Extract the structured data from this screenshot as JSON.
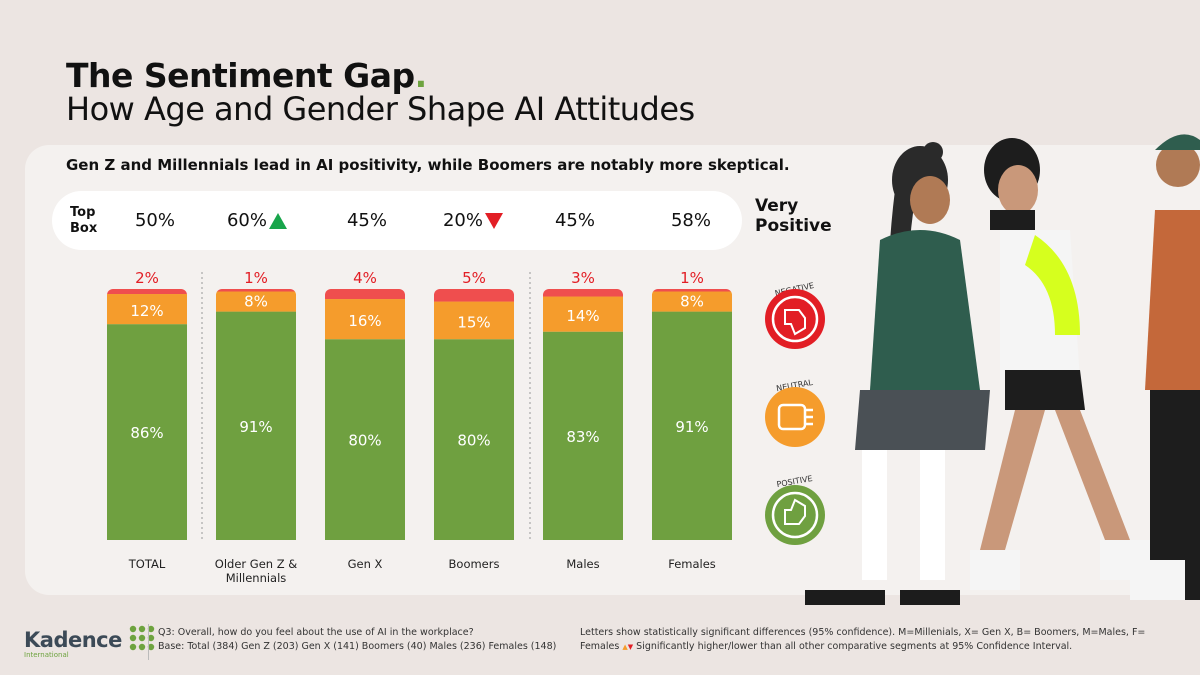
{
  "header": {
    "title": "The Sentiment Gap",
    "title_dot": ".",
    "subtitle": "How Age and Gender Shape AI Attitudes"
  },
  "headline": "Gen Z and Millennials lead in AI positivity, while Boomers are notably more skeptical.",
  "top_box": {
    "label_line1": "Top",
    "label_line2": "Box",
    "values": [
      "50%",
      "60%",
      "45%",
      "20%",
      "45%",
      "58%"
    ],
    "significance": [
      "",
      "up",
      "",
      "down",
      "",
      ""
    ],
    "right_label_line1": "Very",
    "right_label_line2": "Positive"
  },
  "legend": {
    "negative": "NEGATIVE",
    "neutral": "NEUTRAL",
    "positive": "POSITIVE"
  },
  "colors": {
    "positive": "#6fa040",
    "neutral": "#f59c2c",
    "negative": "#ef4e4e",
    "negative_label": "#e21e25",
    "up": "#18a54b",
    "down": "#e21e25",
    "accent": "#6ea33f"
  },
  "chart_data": {
    "type": "bar",
    "stacked": true,
    "categories": [
      "TOTAL",
      "Older Gen Z & Millennials",
      "Gen X",
      "Boomers",
      "Males",
      "Females"
    ],
    "series": [
      {
        "name": "POSITIVE",
        "values": [
          86,
          91,
          80,
          80,
          83,
          91
        ],
        "labels": [
          "86%",
          "91%",
          "80%",
          "80%",
          "83%",
          "91%"
        ]
      },
      {
        "name": "NEUTRAL",
        "values": [
          12,
          8,
          16,
          15,
          14,
          8
        ],
        "labels": [
          "12%",
          "8%",
          "16%",
          "15%",
          "14%",
          "8%"
        ]
      },
      {
        "name": "NEGATIVE",
        "values": [
          2,
          1,
          4,
          5,
          3,
          1
        ],
        "labels": [
          "2%",
          "1%",
          "4%",
          "5%",
          "3%",
          "1%"
        ]
      }
    ],
    "ylim": [
      0,
      100
    ]
  },
  "footer": {
    "logo": "Kadence",
    "logo_sub": "International",
    "question": "Q3: Overall, how do you feel about the use of AI in the workplace?",
    "base": "Base: Total (384) Gen Z (203) Gen X (141) Boomers (40) Males (236) Females (148)",
    "note1": "Letters show statistically significant differences (95% confidence). M=Millenials, X= Gen X, B= Boomers, M=Males, F=",
    "note2": "Females",
    "note2b": "Significantly higher/lower than all other comparative segments at 95% Confidence Interval."
  }
}
